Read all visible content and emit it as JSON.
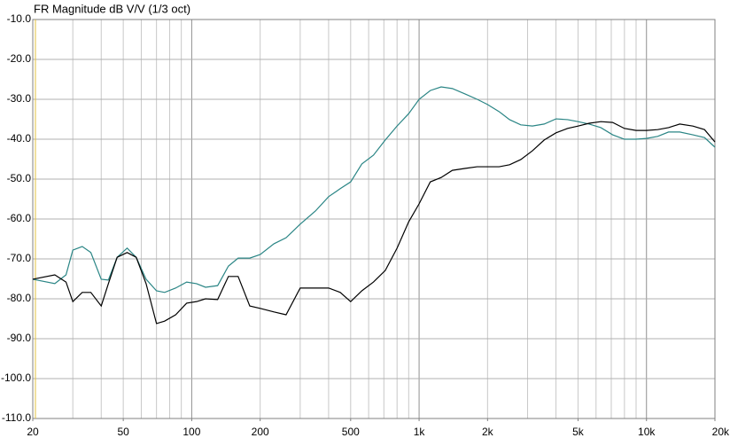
{
  "chart_data": {
    "type": "line",
    "title": "FR Magnitude dB V/V (1/3 oct)",
    "log_x": true,
    "grid": true,
    "xlim": [
      20,
      20000
    ],
    "xticks": [
      20,
      50,
      100,
      200,
      500,
      {
        "value": 1000,
        "label": "1k"
      },
      {
        "value": 2000,
        "label": "2k"
      },
      {
        "value": 5000,
        "label": "5k"
      },
      {
        "value": 10000,
        "label": "10k"
      },
      {
        "value": 20000,
        "label": "20k"
      }
    ],
    "ylim": [
      -110,
      -10
    ],
    "yticks": [
      {
        "value": -10,
        "label": "-10.0"
      },
      {
        "value": -20,
        "label": "-20.0"
      },
      {
        "value": -30,
        "label": "-30.0"
      },
      {
        "value": -40,
        "label": "-40.0"
      },
      {
        "value": -50,
        "label": "-50.0"
      },
      {
        "value": -60,
        "label": "-60.0"
      },
      {
        "value": -70,
        "label": "-70.0"
      },
      {
        "value": -80,
        "label": "-80.0"
      },
      {
        "value": -90,
        "label": "-90.0"
      },
      {
        "value": -100,
        "label": "-100.0"
      },
      {
        "value": -110,
        "label": "-110.0"
      }
    ],
    "x": [
      20,
      25,
      28,
      30,
      33,
      36,
      40,
      43,
      47,
      52,
      57,
      63,
      70,
      76,
      85,
      95,
      105,
      115,
      130,
      145,
      160,
      180,
      200,
      230,
      260,
      300,
      350,
      400,
      450,
      500,
      560,
      630,
      710,
      800,
      900,
      1000,
      1120,
      1250,
      1400,
      1600,
      1800,
      2000,
      2250,
      2500,
      2800,
      3150,
      3550,
      4000,
      4500,
      5000,
      5600,
      6300,
      7100,
      8000,
      9000,
      10000,
      11200,
      12500,
      14000,
      16000,
      18000,
      20000
    ],
    "series": [
      {
        "color": "#2a8585",
        "values": [
          -75.1,
          -76.2,
          -74.0,
          -67.8,
          -66.9,
          -68.4,
          -75.1,
          -75.3,
          -69.6,
          -67.3,
          -69.6,
          -75.1,
          -78.0,
          -78.4,
          -77.3,
          -75.8,
          -76.2,
          -77.1,
          -76.7,
          -71.8,
          -69.8,
          -69.8,
          -68.9,
          -66.2,
          -64.7,
          -61.3,
          -58.0,
          -54.4,
          -52.4,
          -50.7,
          -46.2,
          -44.0,
          -40.2,
          -36.7,
          -33.6,
          -30.0,
          -27.8,
          -26.9,
          -27.3,
          -28.7,
          -30.0,
          -31.3,
          -33.1,
          -35.1,
          -36.4,
          -36.7,
          -36.2,
          -34.9,
          -35.1,
          -35.6,
          -36.2,
          -37.1,
          -38.9,
          -40.0,
          -40.0,
          -39.8,
          -39.3,
          -38.2,
          -38.2,
          -38.9,
          -39.6,
          -42.0
        ]
      },
      {
        "color": "#000000",
        "values": [
          -75.1,
          -74.0,
          -75.8,
          -80.7,
          -78.4,
          -78.4,
          -81.8,
          -76.2,
          -69.6,
          -68.4,
          -69.6,
          -76.2,
          -86.2,
          -85.6,
          -84.0,
          -81.1,
          -80.7,
          -80.0,
          -80.2,
          -74.4,
          -74.4,
          -81.8,
          -82.4,
          -83.3,
          -84.0,
          -77.3,
          -77.3,
          -77.3,
          -78.4,
          -80.7,
          -78.0,
          -75.8,
          -72.9,
          -67.3,
          -60.7,
          -56.2,
          -50.7,
          -49.6,
          -47.8,
          -47.3,
          -46.9,
          -46.9,
          -46.9,
          -46.4,
          -45.1,
          -42.9,
          -40.2,
          -38.4,
          -37.3,
          -36.7,
          -36.0,
          -35.6,
          -35.8,
          -37.3,
          -37.8,
          -37.8,
          -37.6,
          -37.1,
          -36.2,
          -36.7,
          -37.6,
          -40.7
        ]
      }
    ]
  }
}
